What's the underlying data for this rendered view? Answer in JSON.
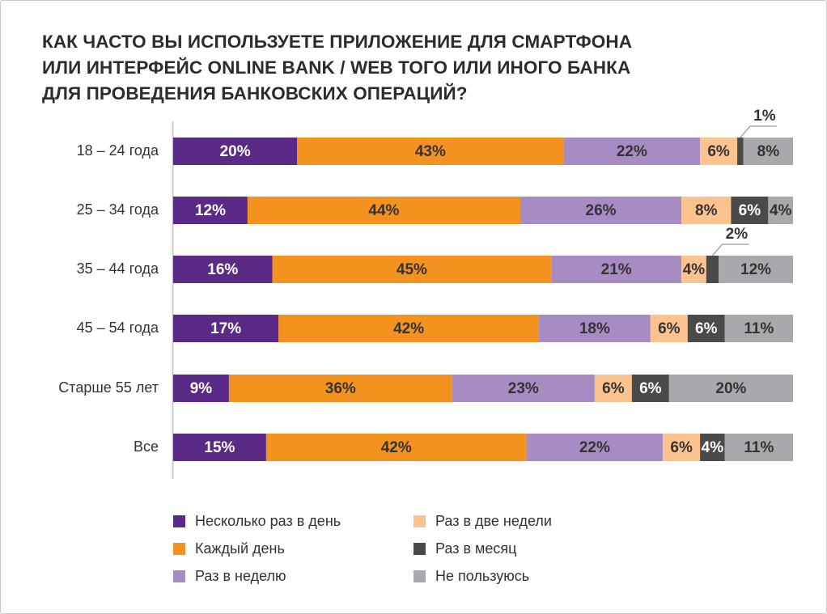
{
  "title_lines": [
    "КАК ЧАСТО ВЫ ИСПОЛЬЗУЕТЕ ПРИЛОЖЕНИЕ ДЛЯ СМАРТФОНА",
    "ИЛИ ИНТЕРФЕЙС ONLINE BANK / WEB ТОГО ИЛИ ИНОГО БАНКА",
    "ДЛЯ ПРОВЕДЕНИЯ БАНКОВСКИХ ОПЕРАЦИЙ?"
  ],
  "chart_data": {
    "type": "bar",
    "orientation": "horizontal",
    "stacked": true,
    "title": "КАК ЧАСТО ВЫ ИСПОЛЬЗУЕТЕ ПРИЛОЖЕНИЕ ДЛЯ СМАРТФОНА ИЛИ ИНТЕРФЕЙС ONLINE BANK / WEB ТОГО ИЛИ ИНОГО БАНКА ДЛЯ ПРОВЕДЕНИЯ БАНКОВСКИХ ОПЕРАЦИЙ?",
    "categories": [
      "18 – 24 года",
      "25 – 34 года",
      "35 – 44 года",
      "45 – 54 года",
      "Старше 55 лет",
      "Все"
    ],
    "unit": "%",
    "grid": false,
    "legend_position": "bottom",
    "series": [
      {
        "name": "Несколько раз в день",
        "color": "#5b2a86",
        "values": [
          20,
          12,
          16,
          17,
          9,
          15
        ]
      },
      {
        "name": "Каждый день",
        "color": "#f3921f",
        "values": [
          43,
          44,
          45,
          42,
          36,
          42
        ]
      },
      {
        "name": "Раз в неделю",
        "color": "#a78bc3",
        "values": [
          22,
          26,
          21,
          18,
          23,
          22
        ]
      },
      {
        "name": "Раз в две недели",
        "color": "#fdc38f",
        "values": [
          6,
          8,
          4,
          6,
          6,
          6
        ]
      },
      {
        "name": "Раз в месяц",
        "color": "#4a4a4a",
        "values": [
          1,
          6,
          2,
          6,
          6,
          4
        ]
      },
      {
        "name": "Не пользуюсь",
        "color": "#a7a9ac",
        "values": [
          8,
          4,
          12,
          11,
          20,
          11
        ]
      }
    ]
  }
}
